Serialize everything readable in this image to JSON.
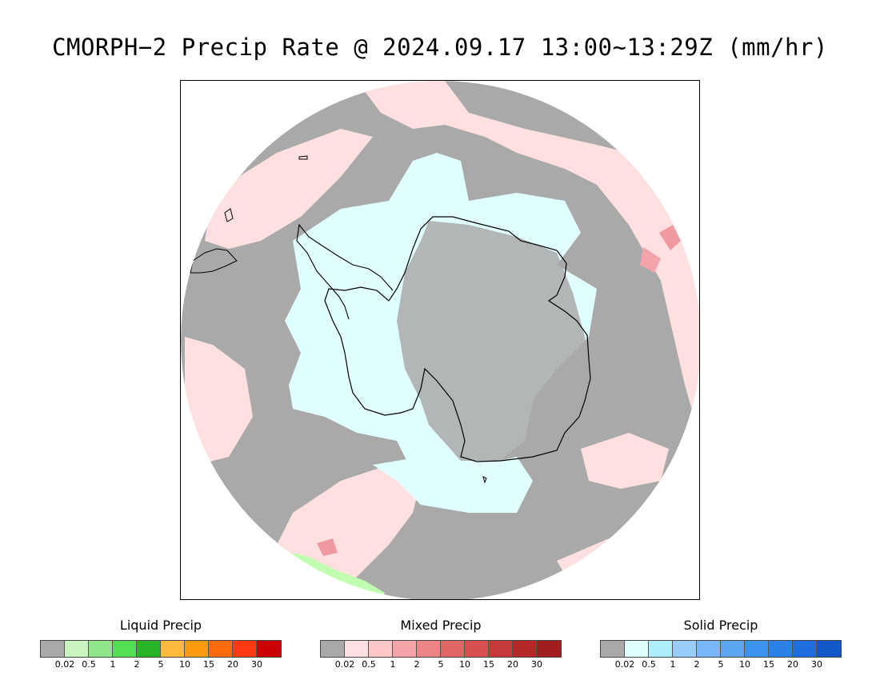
{
  "title": "CMORPH−2 Precip Rate @ 2024.09.17 13:00~13:29Z (mm/hr)",
  "map": {
    "projection": "south-polar-stereographic",
    "colors": {
      "no_data": "#ffffff",
      "background_precip": "#a9a9a9",
      "mixed_light": "#ffe0e0",
      "mixed_medium": "#ee9aa0",
      "solid_light": "#e0ffff",
      "liquid_light": "#c1ffb0",
      "coastline": "#000000"
    }
  },
  "legends": [
    {
      "title": "Liquid Precip",
      "colors": [
        "#a9a9a9",
        "#c8f5c0",
        "#8fe68a",
        "#53df53",
        "#28b428",
        "#fdba3d",
        "#fd9a0d",
        "#fd6a0c",
        "#fd3a10",
        "#cc0000"
      ],
      "ticks": [
        "0.02",
        "0.5",
        "1",
        "2",
        "5",
        "10",
        "15",
        "20",
        "30"
      ]
    },
    {
      "title": "Mixed Precip",
      "colors": [
        "#a9a9a9",
        "#ffe0e0",
        "#fdc7c7",
        "#f4a3a8",
        "#ec8686",
        "#e06565",
        "#d95050",
        "#c83a3a",
        "#b52828",
        "#a01e1e"
      ],
      "ticks": [
        "0.02",
        "0.5",
        "1",
        "2",
        "5",
        "10",
        "15",
        "20",
        "30"
      ]
    },
    {
      "title": "Solid Precip",
      "colors": [
        "#a9a9a9",
        "#e0ffff",
        "#aeeefc",
        "#98ccfb",
        "#78b6f8",
        "#5aa6f2",
        "#3c92ee",
        "#2a82e8",
        "#1e6ee0",
        "#1258c8"
      ],
      "ticks": [
        "0.02",
        "0.5",
        "1",
        "2",
        "5",
        "10",
        "15",
        "20",
        "30"
      ]
    }
  ]
}
